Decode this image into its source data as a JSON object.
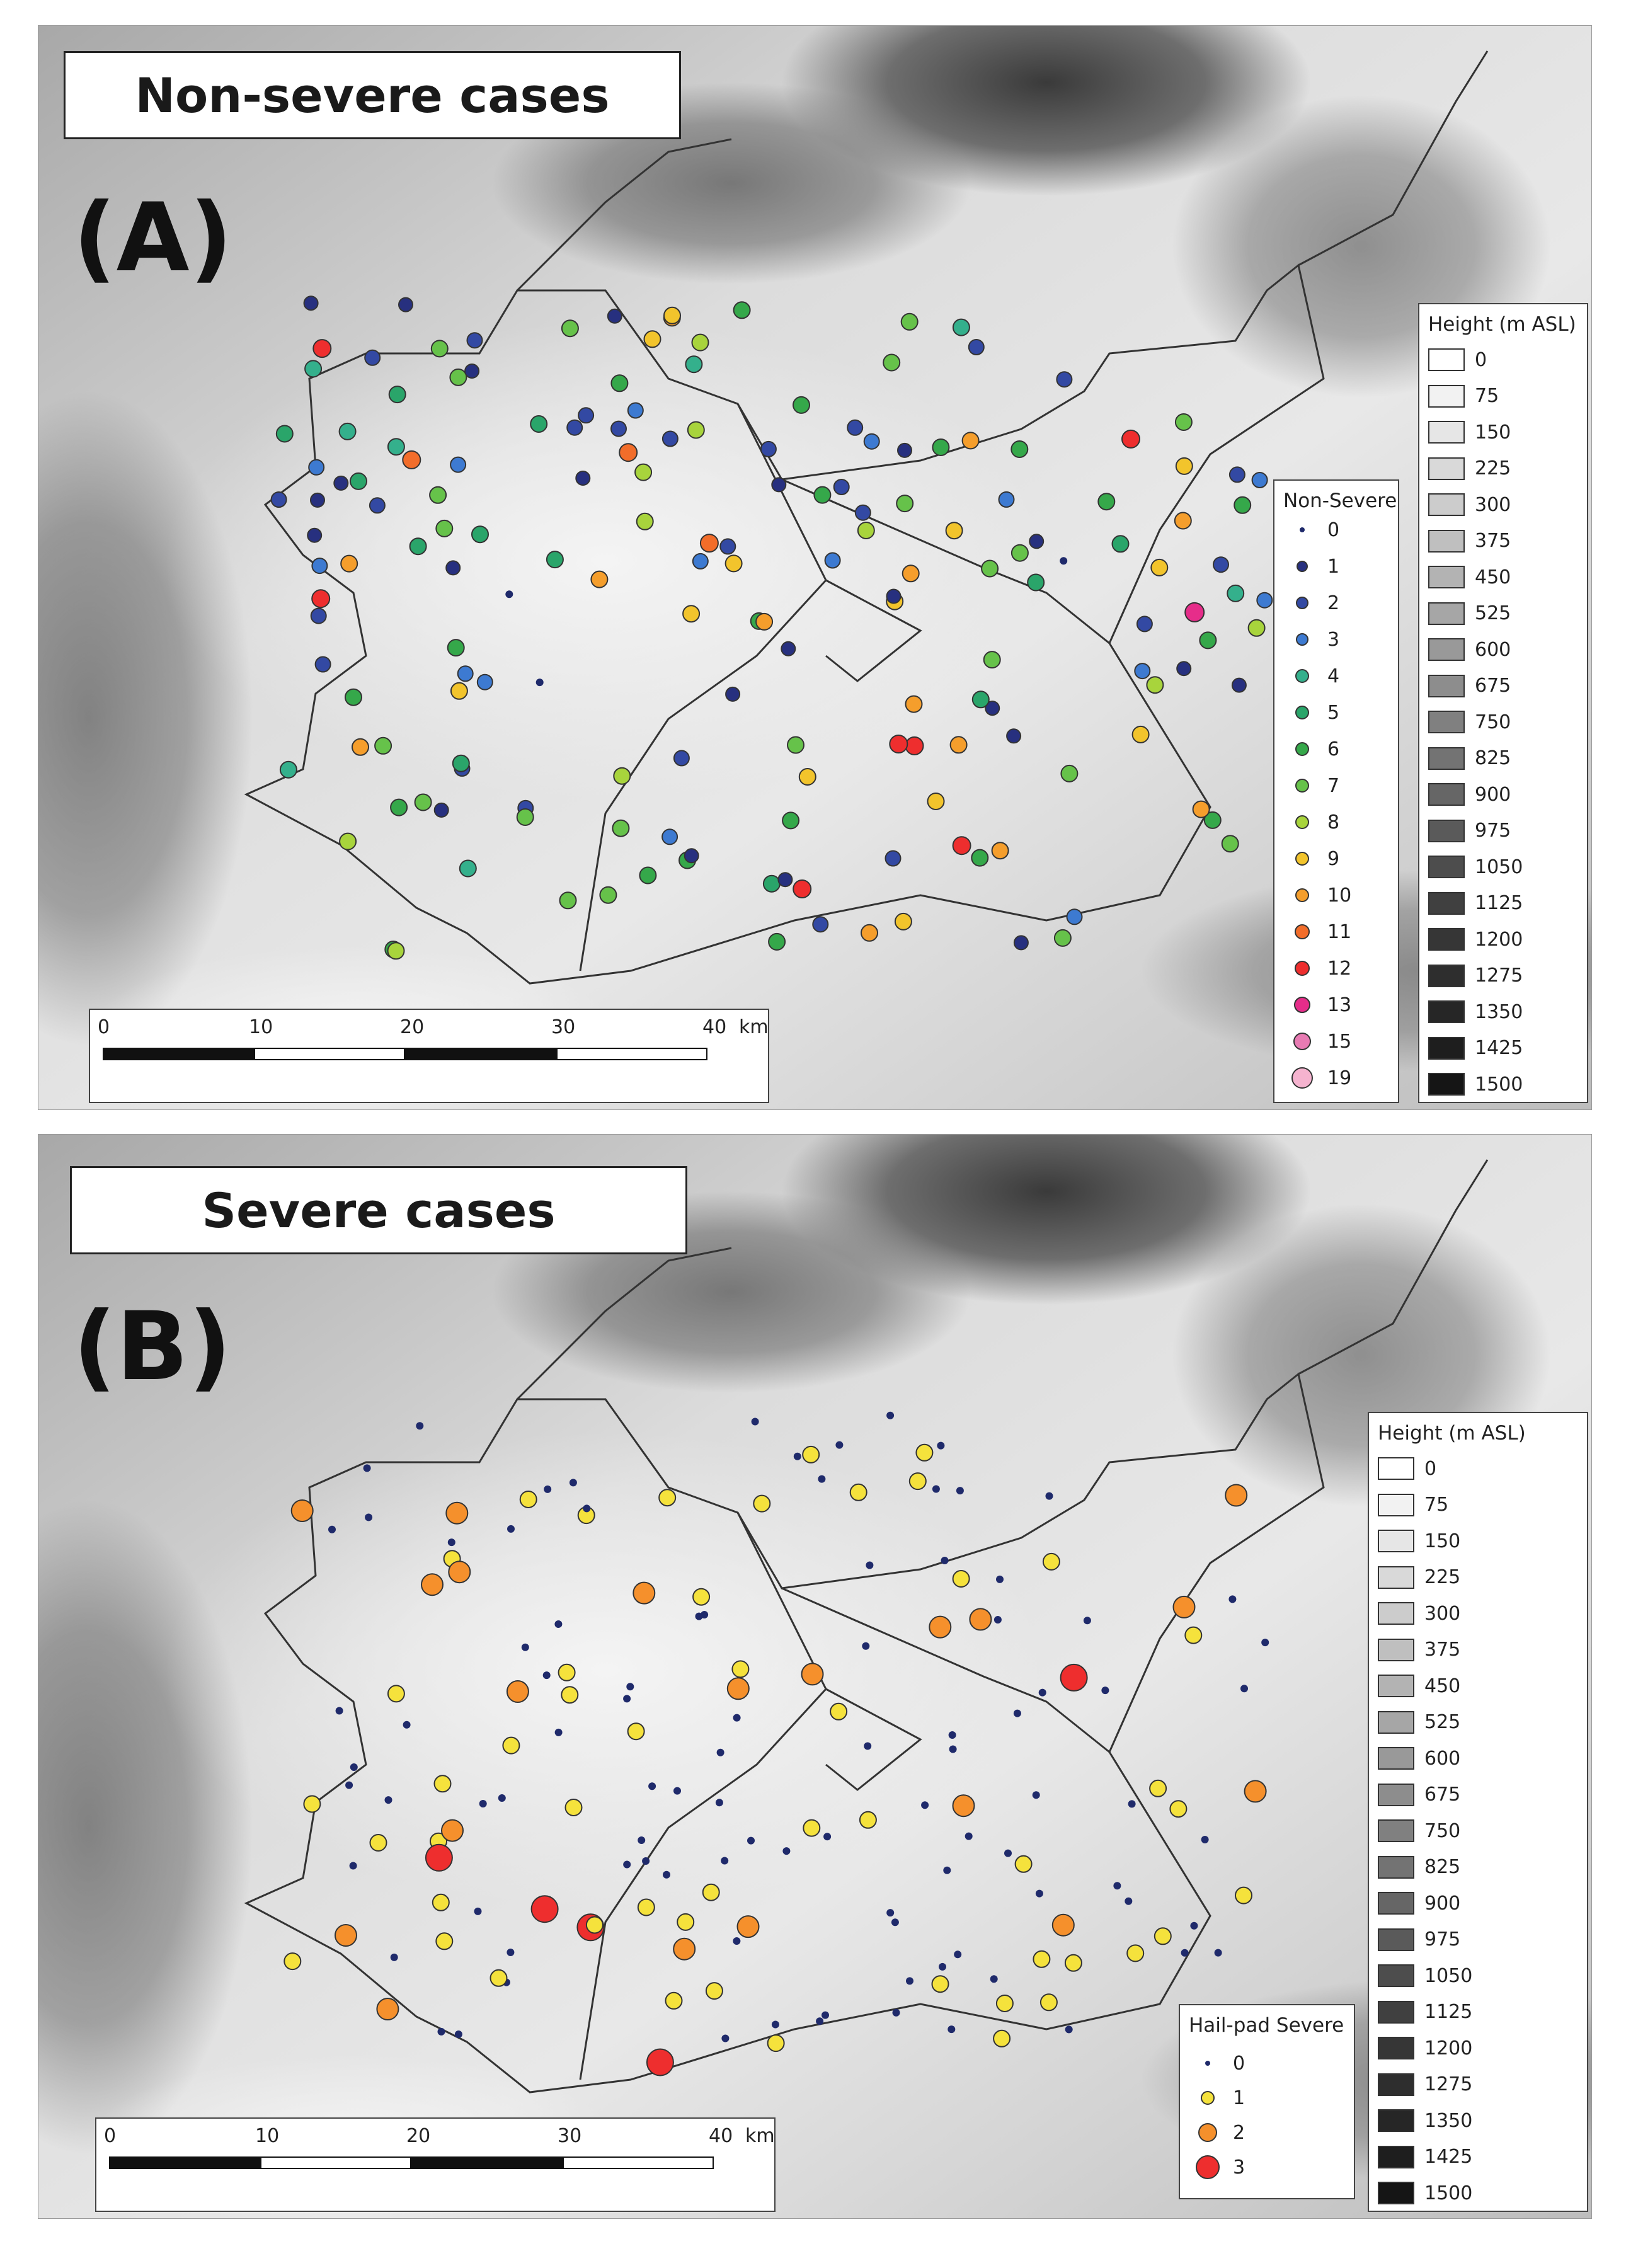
{
  "panel_a": {
    "title": "Non-severe cases",
    "letter": "(A)",
    "legend_title": "Non-Severe",
    "legend": [
      {
        "label": "0",
        "color": "#1f2a6b",
        "size": 8
      },
      {
        "label": "1",
        "color": "#27307f",
        "size": 18
      },
      {
        "label": "2",
        "color": "#3349a3",
        "size": 20
      },
      {
        "label": "3",
        "color": "#3d7ad1",
        "size": 20
      },
      {
        "label": "4",
        "color": "#34b08c",
        "size": 22
      },
      {
        "label": "5",
        "color": "#2aa56a",
        "size": 22
      },
      {
        "label": "6",
        "color": "#35a84a",
        "size": 22
      },
      {
        "label": "7",
        "color": "#66c24a",
        "size": 22
      },
      {
        "label": "8",
        "color": "#a8d43c",
        "size": 22
      },
      {
        "label": "9",
        "color": "#f2c42c",
        "size": 22
      },
      {
        "label": "10",
        "color": "#f59e2c",
        "size": 22
      },
      {
        "label": "11",
        "color": "#f26d2a",
        "size": 24
      },
      {
        "label": "12",
        "color": "#ee2e2e",
        "size": 24
      },
      {
        "label": "13",
        "color": "#e62d8a",
        "size": 26
      },
      {
        "label": "15",
        "color": "#e87bb3",
        "size": 28
      },
      {
        "label": "19",
        "color": "#f5b3cf",
        "size": 34
      }
    ]
  },
  "panel_b": {
    "title": "Severe cases",
    "letter": "(B)",
    "legend_title": "Hail-pad Severe",
    "legend": [
      {
        "label": "0",
        "color": "#1f2a6b",
        "size": 8
      },
      {
        "label": "1",
        "color": "#f5e23c",
        "size": 22
      },
      {
        "label": "2",
        "color": "#f5902c",
        "size": 30
      },
      {
        "label": "3",
        "color": "#ee2e2e",
        "size": 38
      }
    ]
  },
  "height_legend": {
    "title": "Height (m ASL)",
    "levels": [
      {
        "label": "0",
        "color": "#ffffff"
      },
      {
        "label": "75",
        "color": "#f2f2f2"
      },
      {
        "label": "150",
        "color": "#e6e6e6"
      },
      {
        "label": "225",
        "color": "#d9d9d9"
      },
      {
        "label": "300",
        "color": "#cccccc"
      },
      {
        "label": "375",
        "color": "#bfbfbf"
      },
      {
        "label": "450",
        "color": "#b3b3b3"
      },
      {
        "label": "525",
        "color": "#a6a6a6"
      },
      {
        "label": "600",
        "color": "#999999"
      },
      {
        "label": "675",
        "color": "#8d8d8d"
      },
      {
        "label": "750",
        "color": "#808080"
      },
      {
        "label": "825",
        "color": "#737373"
      },
      {
        "label": "900",
        "color": "#666666"
      },
      {
        "label": "975",
        "color": "#5a5a5a"
      },
      {
        "label": "1050",
        "color": "#4d4d4d"
      },
      {
        "label": "1125",
        "color": "#404040"
      },
      {
        "label": "1200",
        "color": "#363636"
      },
      {
        "label": "1275",
        "color": "#2e2e2e"
      },
      {
        "label": "1350",
        "color": "#262626"
      },
      {
        "label": "1425",
        "color": "#1e1e1e"
      },
      {
        "label": "1500",
        "color": "#151515"
      }
    ]
  },
  "scalebar": {
    "ticks": [
      "0",
      "10",
      "20",
      "30",
      "40"
    ],
    "unit": "km"
  }
}
